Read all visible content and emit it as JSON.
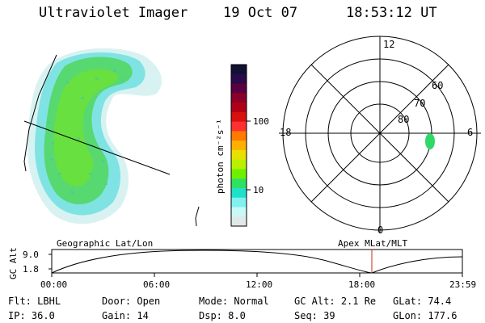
{
  "header": {
    "title": "Ultraviolet Imager",
    "date": "19 Oct 07",
    "time": "18:53:12 UT"
  },
  "colorbar": {
    "label": "photon cm⁻²s⁻¹",
    "ticks": [
      "100",
      "10"
    ],
    "colors": [
      "#111133",
      "#2a0a4a",
      "#5a0040",
      "#8a0028",
      "#b00018",
      "#d81010",
      "#ff3030",
      "#ff7a00",
      "#ffb000",
      "#e8e000",
      "#b8f000",
      "#70f000",
      "#30e060",
      "#20e0c8",
      "#80f0f0",
      "#c8f8f8",
      "#e0e8e8"
    ]
  },
  "polar": {
    "lat_labels": [
      "80",
      "70",
      "60"
    ],
    "mlt_labels": {
      "top": "12",
      "left": "18",
      "right": "6",
      "bottom": "0"
    }
  },
  "altitude_plot": {
    "ylabel": "GC Alt",
    "yticks": [
      "9.0",
      "1.8"
    ],
    "left_title": "Geographic Lat/Lon",
    "right_title": "Apex MLat/MLT",
    "xticks": [
      "00:00",
      "06:00",
      "12:00",
      "18:00",
      "23:59"
    ]
  },
  "footer": {
    "row1": [
      {
        "label": "Flt:",
        "value": "LBHL"
      },
      {
        "label": "Door:",
        "value": "Open"
      },
      {
        "label": "Mode:",
        "value": "Normal"
      },
      {
        "label": "GC Alt:",
        "value": "2.1 Re"
      },
      {
        "label": "GLat:",
        "value": "74.4"
      }
    ],
    "row2": [
      {
        "label": "IP:",
        "value": "36.0"
      },
      {
        "label": "Gain:",
        "value": "14"
      },
      {
        "label": "Dsp:",
        "value": "8.0"
      },
      {
        "label": "Seq:",
        "value": "39"
      },
      {
        "label": "GLon:",
        "value": "177.6"
      }
    ]
  }
}
